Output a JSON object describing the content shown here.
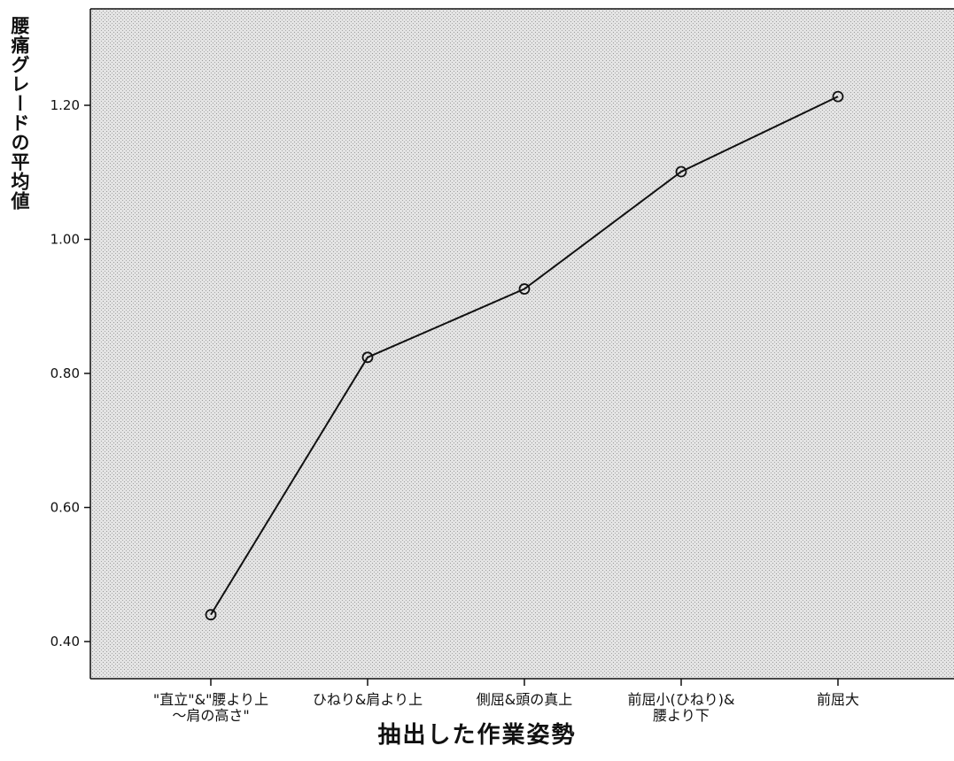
{
  "chart_data": {
    "type": "line",
    "title": "",
    "xlabel": "抽出した作業姿勢",
    "ylabel": "腰痛グレードの平均値",
    "categories": [
      [
        "\"直立\"&\"腰より上",
        "～肩の高さ\""
      ],
      [
        "ひねり&肩より上"
      ],
      [
        "側屈&頭の真上"
      ],
      [
        "前屈小(ひねり)&",
        "腰より下"
      ],
      [
        "前屈大"
      ]
    ],
    "values": [
      0.44,
      0.824,
      0.926,
      1.101,
      1.213
    ],
    "y_ticks": [
      "0.40",
      "0.60",
      "0.80",
      "1.00",
      "1.20"
    ],
    "ylim": [
      0.35,
      1.35
    ],
    "grid": false,
    "marker": "open-circle",
    "line_color": "#111111",
    "background": "#e2e2e2"
  }
}
